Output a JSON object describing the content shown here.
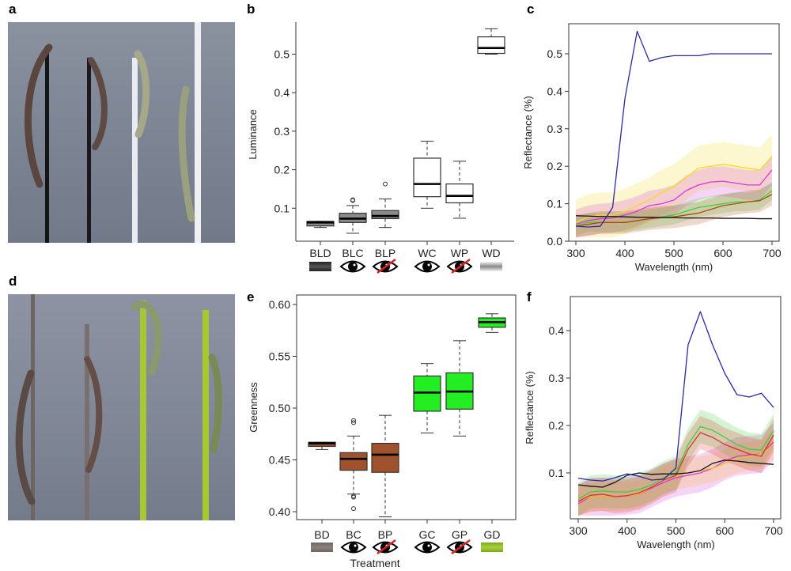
{
  "panels": {
    "a": "a",
    "b": "b",
    "c": "c",
    "d": "d",
    "e": "e",
    "f": "f"
  },
  "colors": {
    "blue": "#2a2aa8",
    "yellow": "#f2e230",
    "magenta": "#d63ad6",
    "green": "#3ccf3c",
    "brown": "#b04a10",
    "red": "#e0302a",
    "black": "#111111",
    "box_grey": "#8a8a8a",
    "box_white": "#ffffff",
    "box_brown": "#a0522d",
    "box_green": "#22ee22"
  },
  "chart_data": [
    {
      "id": "b",
      "type": "boxplot",
      "ylabel": "Luminance",
      "xlabel": "",
      "yticks": [
        "0.1",
        "0.2",
        "0.3",
        "0.4",
        "0.5"
      ],
      "ylim": [
        0.03,
        0.57
      ],
      "categories": [
        {
          "label": "BLD",
          "icon": "swatch-dark",
          "fill": "#8a8a8a",
          "lo": 0.05,
          "q1": 0.054,
          "med": 0.063,
          "q3": 0.066,
          "hi": 0.066,
          "outliers": []
        },
        {
          "label": "BLC",
          "icon": "eye",
          "fill": "#8a8a8a",
          "lo": 0.035,
          "q1": 0.063,
          "med": 0.073,
          "q3": 0.087,
          "hi": 0.107,
          "outliers": [
            0.12,
            0.122
          ]
        },
        {
          "label": "BLP",
          "icon": "eye-crossed",
          "fill": "#8a8a8a",
          "lo": 0.05,
          "q1": 0.073,
          "med": 0.08,
          "q3": 0.094,
          "hi": 0.124,
          "outliers": [
            0.163
          ]
        },
        {
          "label": "WC",
          "icon": "eye",
          "fill": "#ffffff",
          "lo": 0.1,
          "q1": 0.13,
          "med": 0.163,
          "q3": 0.23,
          "hi": 0.274,
          "outliers": []
        },
        {
          "label": "WP",
          "icon": "eye-crossed",
          "fill": "#ffffff",
          "lo": 0.074,
          "q1": 0.114,
          "med": 0.132,
          "q3": 0.163,
          "hi": 0.222,
          "outliers": []
        },
        {
          "label": "WD",
          "icon": "swatch-white",
          "fill": "#ffffff",
          "lo": 0.5,
          "q1": 0.502,
          "med": 0.516,
          "q3": 0.545,
          "hi": 0.566,
          "outliers": []
        }
      ]
    },
    {
      "id": "c",
      "type": "line",
      "xlabel": "Wavelength (nm)",
      "ylabel": "Reflectance (%)",
      "xticks": [
        "300",
        "400",
        "500",
        "600",
        "700"
      ],
      "yticks": [
        "0.0",
        "0.1",
        "0.2",
        "0.3",
        "0.4",
        "0.5"
      ],
      "xlim": [
        300,
        700
      ],
      "ylim": [
        0,
        0.57
      ],
      "x": [
        300,
        325,
        350,
        375,
        400,
        425,
        450,
        475,
        500,
        525,
        550,
        575,
        600,
        625,
        650,
        675,
        700
      ],
      "series": [
        {
          "name": "yellow",
          "color": "#f0dc20",
          "band": 0.06,
          "values": [
            0.05,
            0.065,
            0.07,
            0.07,
            0.08,
            0.095,
            0.11,
            0.13,
            0.145,
            0.17,
            0.195,
            0.2,
            0.205,
            0.2,
            0.195,
            0.19,
            0.225
          ]
        },
        {
          "name": "magenta",
          "color": "#d63ad6",
          "band": 0.04,
          "values": [
            0.045,
            0.055,
            0.06,
            0.062,
            0.07,
            0.08,
            0.095,
            0.1,
            0.11,
            0.135,
            0.15,
            0.158,
            0.16,
            0.155,
            0.15,
            0.15,
            0.19
          ]
        },
        {
          "name": "green",
          "color": "#3ccf3c",
          "band": 0.025,
          "values": [
            0.04,
            0.05,
            0.05,
            0.05,
            0.05,
            0.055,
            0.06,
            0.065,
            0.07,
            0.08,
            0.09,
            0.095,
            0.1,
            0.105,
            0.105,
            0.11,
            0.135
          ]
        },
        {
          "name": "brown",
          "color": "#b04a10",
          "band": 0.03,
          "values": [
            0.04,
            0.045,
            0.05,
            0.05,
            0.05,
            0.055,
            0.06,
            0.063,
            0.065,
            0.07,
            0.075,
            0.085,
            0.095,
            0.1,
            0.105,
            0.108,
            0.125
          ]
        },
        {
          "name": "black",
          "color": "#111111",
          "band": 0,
          "values": [
            0.068,
            0.067,
            0.066,
            0.066,
            0.065,
            0.064,
            0.064,
            0.063,
            0.063,
            0.062,
            0.062,
            0.062,
            0.061,
            0.061,
            0.061,
            0.06,
            0.06
          ]
        },
        {
          "name": "blue",
          "color": "#2a2aa8",
          "band": 0,
          "values": [
            0.04,
            0.038,
            0.04,
            0.09,
            0.38,
            0.56,
            0.48,
            0.49,
            0.495,
            0.495,
            0.495,
            0.5,
            0.5,
            0.5,
            0.5,
            0.5,
            0.5
          ]
        }
      ]
    },
    {
      "id": "e",
      "type": "boxplot",
      "ylabel": "Greenness",
      "xlabel": "Treatment",
      "yticks": [
        "0.40",
        "0.45",
        "0.50",
        "0.55",
        "0.60"
      ],
      "ylim": [
        0.39,
        0.605
      ],
      "categories": [
        {
          "label": "BD",
          "icon": "swatch-brown",
          "fill": "#a0522d",
          "lo": 0.46,
          "q1": 0.463,
          "med": 0.466,
          "q3": 0.467,
          "hi": 0.467,
          "outliers": []
        },
        {
          "label": "BC",
          "icon": "eye",
          "fill": "#a0522d",
          "lo": 0.417,
          "q1": 0.44,
          "med": 0.451,
          "q3": 0.457,
          "hi": 0.473,
          "outliers": [
            0.488,
            0.486,
            0.415,
            0.414,
            0.403
          ]
        },
        {
          "label": "BP",
          "icon": "eye-crossed",
          "fill": "#a0522d",
          "lo": 0.395,
          "q1": 0.438,
          "med": 0.455,
          "q3": 0.466,
          "hi": 0.493,
          "outliers": []
        },
        {
          "label": "GC",
          "icon": "eye",
          "fill": "#22ee22",
          "lo": 0.476,
          "q1": 0.497,
          "med": 0.515,
          "q3": 0.531,
          "hi": 0.543,
          "outliers": []
        },
        {
          "label": "GP",
          "icon": "eye-crossed",
          "fill": "#22ee22",
          "lo": 0.473,
          "q1": 0.499,
          "med": 0.516,
          "q3": 0.534,
          "hi": 0.565,
          "outliers": []
        },
        {
          "label": "GD",
          "icon": "swatch-green",
          "fill": "#22ee22",
          "lo": 0.573,
          "q1": 0.578,
          "med": 0.583,
          "q3": 0.587,
          "hi": 0.591,
          "outliers": []
        }
      ]
    },
    {
      "id": "f",
      "type": "line",
      "xlabel": "Wavelength (nm)",
      "ylabel": "Reflectance (%)",
      "xticks": [
        "300",
        "400",
        "500",
        "600",
        "700"
      ],
      "yticks": [
        "0.1",
        "0.2",
        "0.3",
        "0.4"
      ],
      "xlim": [
        300,
        700
      ],
      "ylim": [
        0,
        0.47
      ],
      "x": [
        300,
        325,
        350,
        375,
        400,
        425,
        450,
        475,
        500,
        525,
        550,
        575,
        600,
        625,
        650,
        675,
        700
      ],
      "series": [
        {
          "name": "magenta",
          "color": "#d63ad6",
          "band": 0.04,
          "values": [
            0.035,
            0.05,
            0.05,
            0.05,
            0.052,
            0.055,
            0.068,
            0.08,
            0.09,
            0.095,
            0.1,
            0.11,
            0.125,
            0.135,
            0.138,
            0.14,
            0.165
          ]
        },
        {
          "name": "yellow",
          "color": "#f0c020",
          "band": 0.03,
          "values": [
            0.04,
            0.05,
            0.05,
            0.05,
            0.052,
            0.055,
            0.07,
            0.085,
            0.095,
            0.1,
            0.105,
            0.11,
            0.12,
            0.13,
            0.135,
            0.14,
            0.16
          ]
        },
        {
          "name": "green",
          "color": "#3ccf3c",
          "band": 0.035,
          "values": [
            0.045,
            0.06,
            0.062,
            0.06,
            0.06,
            0.065,
            0.075,
            0.09,
            0.1,
            0.16,
            0.198,
            0.19,
            0.175,
            0.16,
            0.15,
            0.148,
            0.19
          ]
        },
        {
          "name": "red",
          "color": "#e0302a",
          "band": 0.035,
          "values": [
            0.04,
            0.053,
            0.055,
            0.05,
            0.052,
            0.058,
            0.07,
            0.085,
            0.095,
            0.15,
            0.185,
            0.175,
            0.16,
            0.15,
            0.14,
            0.135,
            0.18
          ]
        },
        {
          "name": "black",
          "color": "#111111",
          "band": 0,
          "values": [
            0.075,
            0.072,
            0.07,
            0.08,
            0.095,
            0.1,
            0.097,
            0.098,
            0.098,
            0.1,
            0.105,
            0.12,
            0.127,
            0.125,
            0.122,
            0.12,
            0.118
          ]
        },
        {
          "name": "blue",
          "color": "#2a2aa8",
          "band": 0,
          "values": [
            0.089,
            0.085,
            0.083,
            0.09,
            0.098,
            0.093,
            0.085,
            0.087,
            0.11,
            0.37,
            0.44,
            0.37,
            0.31,
            0.265,
            0.26,
            0.268,
            0.238
          ]
        }
      ]
    }
  ]
}
